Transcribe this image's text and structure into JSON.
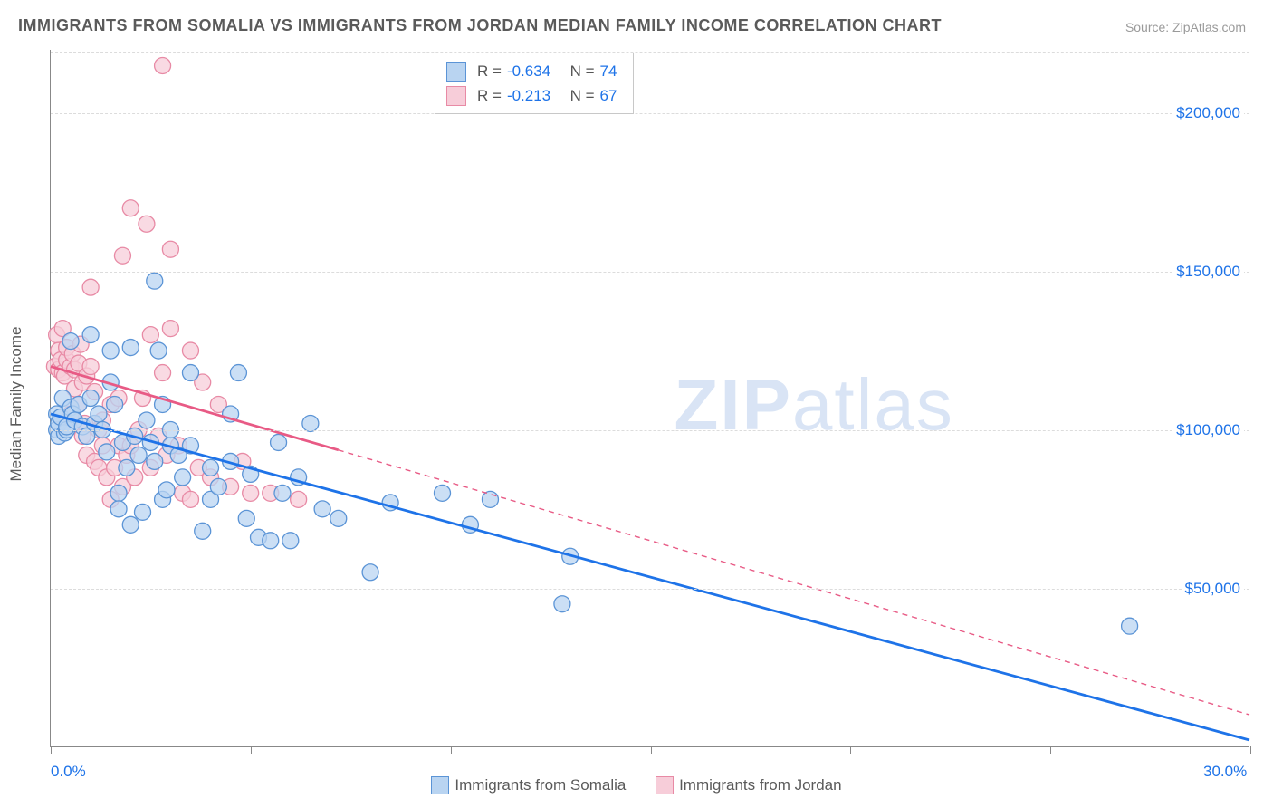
{
  "title": "IMMIGRANTS FROM SOMALIA VS IMMIGRANTS FROM JORDAN MEDIAN FAMILY INCOME CORRELATION CHART",
  "source_label": "Source: ZipAtlas.com",
  "watermark": {
    "bold": "ZIP",
    "light": "atlas"
  },
  "chart": {
    "type": "scatter-with-trendlines",
    "xlim": [
      0,
      30
    ],
    "ylim": [
      0,
      220000
    ],
    "x_unit": "%",
    "y_label": "Median Family Income",
    "x_tick_positions": [
      0,
      5,
      10,
      15,
      20,
      25,
      30
    ],
    "x_tick_labels_shown": {
      "0": "0.0%",
      "30": "30.0%"
    },
    "y_ticks": [
      50000,
      100000,
      150000,
      200000
    ],
    "y_tick_labels": [
      "$50,000",
      "$100,000",
      "$150,000",
      "$200,000"
    ],
    "grid_color": "#dcdcdc",
    "axis_color": "#888888",
    "tick_label_color": "#1e73e8",
    "background_color": "#ffffff",
    "marker_radius": 9,
    "marker_stroke_width": 1.3,
    "trendline_width_solid": 2.8,
    "trendline_width_dashed": 1.4,
    "trendline_dash": "6 5"
  },
  "series": [
    {
      "key": "somalia",
      "label": "Immigrants from Somalia",
      "fill": "#b9d4f1",
      "stroke": "#5b94d6",
      "line_color": "#1e73e8",
      "r": -0.634,
      "n": 74,
      "trend": {
        "x1": 0,
        "y1": 105000,
        "x2": 30,
        "y2": 2000,
        "solid_until_x": 30
      },
      "points": [
        [
          0.15,
          100000
        ],
        [
          0.15,
          105000
        ],
        [
          0.2,
          98000
        ],
        [
          0.2,
          102000
        ],
        [
          0.25,
          104000
        ],
        [
          0.3,
          110000
        ],
        [
          0.35,
          99000
        ],
        [
          0.4,
          100000
        ],
        [
          0.4,
          101000
        ],
        [
          0.5,
          128000
        ],
        [
          0.5,
          107000
        ],
        [
          0.55,
          105000
        ],
        [
          0.6,
          103000
        ],
        [
          0.7,
          108000
        ],
        [
          0.8,
          101000
        ],
        [
          0.9,
          98000
        ],
        [
          1.0,
          110000
        ],
        [
          1.0,
          130000
        ],
        [
          1.1,
          102000
        ],
        [
          1.2,
          105000
        ],
        [
          1.3,
          100000
        ],
        [
          1.4,
          93000
        ],
        [
          1.5,
          125000
        ],
        [
          1.5,
          115000
        ],
        [
          1.6,
          108000
        ],
        [
          1.7,
          80000
        ],
        [
          1.7,
          75000
        ],
        [
          1.8,
          96000
        ],
        [
          1.9,
          88000
        ],
        [
          2.0,
          126000
        ],
        [
          2.0,
          70000
        ],
        [
          2.1,
          98000
        ],
        [
          2.2,
          92000
        ],
        [
          2.3,
          74000
        ],
        [
          2.4,
          103000
        ],
        [
          2.5,
          96000
        ],
        [
          2.6,
          147000
        ],
        [
          2.6,
          90000
        ],
        [
          2.7,
          125000
        ],
        [
          2.8,
          108000
        ],
        [
          2.8,
          78000
        ],
        [
          2.9,
          81000
        ],
        [
          3.0,
          95000
        ],
        [
          3.0,
          100000
        ],
        [
          3.2,
          92000
        ],
        [
          3.3,
          85000
        ],
        [
          3.5,
          118000
        ],
        [
          3.5,
          95000
        ],
        [
          3.8,
          68000
        ],
        [
          4.0,
          88000
        ],
        [
          4.0,
          78000
        ],
        [
          4.2,
          82000
        ],
        [
          4.5,
          105000
        ],
        [
          4.5,
          90000
        ],
        [
          4.7,
          118000
        ],
        [
          4.9,
          72000
        ],
        [
          5.0,
          86000
        ],
        [
          5.2,
          66000
        ],
        [
          5.5,
          65000
        ],
        [
          5.7,
          96000
        ],
        [
          5.8,
          80000
        ],
        [
          6.0,
          65000
        ],
        [
          6.2,
          85000
        ],
        [
          6.5,
          102000
        ],
        [
          6.8,
          75000
        ],
        [
          7.2,
          72000
        ],
        [
          8.0,
          55000
        ],
        [
          8.5,
          77000
        ],
        [
          9.8,
          80000
        ],
        [
          10.5,
          70000
        ],
        [
          11.0,
          78000
        ],
        [
          12.8,
          45000
        ],
        [
          13.0,
          60000
        ],
        [
          27.0,
          38000
        ]
      ]
    },
    {
      "key": "jordan",
      "label": "Immigrants from Jordan",
      "fill": "#f7cdd9",
      "stroke": "#e88aa5",
      "line_color": "#e85a85",
      "r": -0.213,
      "n": 67,
      "trend": {
        "x1": 0,
        "y1": 120000,
        "x2": 30,
        "y2": 10000,
        "solid_until_x": 7.2
      },
      "points": [
        [
          0.1,
          120000
        ],
        [
          0.15,
          130000
        ],
        [
          0.2,
          119000
        ],
        [
          0.2,
          125000
        ],
        [
          0.25,
          122000
        ],
        [
          0.3,
          118000
        ],
        [
          0.3,
          132000
        ],
        [
          0.35,
          117000
        ],
        [
          0.4,
          122000
        ],
        [
          0.4,
          126000
        ],
        [
          0.5,
          120000
        ],
        [
          0.5,
          105000
        ],
        [
          0.55,
          124000
        ],
        [
          0.6,
          113000
        ],
        [
          0.6,
          119000
        ],
        [
          0.7,
          121000
        ],
        [
          0.7,
          108000
        ],
        [
          0.75,
          127000
        ],
        [
          0.8,
          115000
        ],
        [
          0.8,
          98000
        ],
        [
          0.85,
          102000
        ],
        [
          0.9,
          117000
        ],
        [
          0.9,
          92000
        ],
        [
          1.0,
          120000
        ],
        [
          1.0,
          145000
        ],
        [
          1.1,
          112000
        ],
        [
          1.1,
          90000
        ],
        [
          1.2,
          100000
        ],
        [
          1.2,
          88000
        ],
        [
          1.3,
          95000
        ],
        [
          1.3,
          103000
        ],
        [
          1.4,
          85000
        ],
        [
          1.5,
          108000
        ],
        [
          1.5,
          78000
        ],
        [
          1.6,
          88000
        ],
        [
          1.7,
          110000
        ],
        [
          1.7,
          95000
        ],
        [
          1.8,
          155000
        ],
        [
          1.8,
          82000
        ],
        [
          1.9,
          92000
        ],
        [
          2.0,
          170000
        ],
        [
          2.0,
          95000
        ],
        [
          2.1,
          85000
        ],
        [
          2.2,
          100000
        ],
        [
          2.3,
          110000
        ],
        [
          2.4,
          165000
        ],
        [
          2.5,
          130000
        ],
        [
          2.5,
          88000
        ],
        [
          2.7,
          98000
        ],
        [
          2.8,
          215000
        ],
        [
          2.8,
          118000
        ],
        [
          2.9,
          92000
        ],
        [
          3.0,
          132000
        ],
        [
          3.0,
          157000
        ],
        [
          3.2,
          95000
        ],
        [
          3.3,
          80000
        ],
        [
          3.5,
          78000
        ],
        [
          3.5,
          125000
        ],
        [
          3.7,
          88000
        ],
        [
          3.8,
          115000
        ],
        [
          4.0,
          85000
        ],
        [
          4.2,
          108000
        ],
        [
          4.5,
          82000
        ],
        [
          4.8,
          90000
        ],
        [
          5.0,
          80000
        ],
        [
          5.5,
          80000
        ],
        [
          6.2,
          78000
        ]
      ]
    }
  ],
  "stats_box": {
    "r_label": "R =",
    "n_label": "N ="
  },
  "legend_bottom_labels": [
    "Immigrants from Somalia",
    "Immigrants from Jordan"
  ]
}
